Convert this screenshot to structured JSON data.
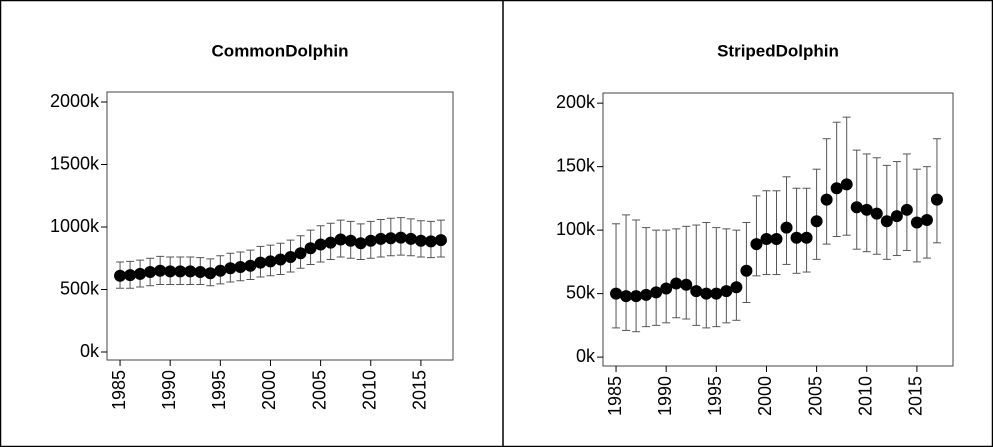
{
  "chart_data": [
    {
      "type": "scatter",
      "title": "CommonDolphin",
      "x": [
        1985,
        1986,
        1987,
        1988,
        1989,
        1990,
        1991,
        1992,
        1993,
        1994,
        1995,
        1996,
        1997,
        1998,
        1999,
        2000,
        2001,
        2002,
        2003,
        2004,
        2005,
        2006,
        2007,
        2008,
        2009,
        2010,
        2011,
        2012,
        2013,
        2014,
        2015,
        2016,
        2017
      ],
      "values": [
        610000,
        615000,
        625000,
        640000,
        650000,
        645000,
        645000,
        645000,
        640000,
        630000,
        650000,
        670000,
        680000,
        690000,
        715000,
        725000,
        740000,
        760000,
        790000,
        830000,
        860000,
        875000,
        900000,
        890000,
        870000,
        890000,
        905000,
        910000,
        915000,
        905000,
        890000,
        885000,
        895000
      ],
      "lower": [
        510000,
        510000,
        520000,
        530000,
        540000,
        540000,
        540000,
        540000,
        540000,
        530000,
        545000,
        560000,
        570000,
        580000,
        600000,
        610000,
        620000,
        640000,
        670000,
        700000,
        720000,
        740000,
        760000,
        750000,
        740000,
        750000,
        760000,
        770000,
        775000,
        770000,
        760000,
        755000,
        760000
      ],
      "upper": [
        720000,
        725000,
        735000,
        750000,
        765000,
        760000,
        760000,
        760000,
        755000,
        745000,
        770000,
        790000,
        800000,
        815000,
        845000,
        855000,
        870000,
        895000,
        930000,
        975000,
        1010000,
        1030000,
        1055000,
        1045000,
        1025000,
        1045000,
        1060000,
        1070000,
        1075000,
        1065000,
        1050000,
        1045000,
        1055000
      ],
      "color": "#000000",
      "xlim": [
        1983.7,
        2018.2
      ],
      "xticks": [
        1985,
        1990,
        1995,
        2000,
        2005,
        2010,
        2015
      ],
      "ylim": [
        -64000,
        2080000
      ],
      "yticks": [
        {
          "value": 0,
          "label": "0k"
        },
        {
          "value": 500000,
          "label": "500k"
        },
        {
          "value": 1000000,
          "label": "1000k"
        },
        {
          "value": 1500000,
          "label": "1500k"
        },
        {
          "value": 2000000,
          "label": "2000k"
        }
      ]
    },
    {
      "type": "scatter",
      "title": "StripedDolphin",
      "x": [
        1985,
        1986,
        1987,
        1988,
        1989,
        1990,
        1991,
        1992,
        1993,
        1994,
        1995,
        1996,
        1997,
        1998,
        1999,
        2000,
        2001,
        2002,
        2003,
        2004,
        2005,
        2006,
        2007,
        2008,
        2009,
        2010,
        2011,
        2012,
        2013,
        2014,
        2015,
        2016,
        2017
      ],
      "values": [
        50000,
        48000,
        48000,
        49000,
        51000,
        54000,
        58000,
        57000,
        52000,
        50000,
        50000,
        52000,
        55000,
        68000,
        89000,
        93000,
        93000,
        102000,
        94000,
        94000,
        107000,
        124000,
        133000,
        136000,
        118000,
        116000,
        113000,
        107000,
        111000,
        116000,
        106000,
        108000,
        124000
      ],
      "lower": [
        23000,
        21000,
        20000,
        24000,
        25000,
        27000,
        31000,
        30000,
        25000,
        23000,
        24000,
        27000,
        29000,
        43000,
        64000,
        65000,
        65000,
        73000,
        66000,
        67000,
        77000,
        89000,
        95000,
        96000,
        85000,
        83000,
        81000,
        77000,
        80000,
        84000,
        75000,
        78000,
        90000
      ],
      "upper": [
        105000,
        112000,
        108000,
        102000,
        100000,
        100000,
        101000,
        103000,
        104000,
        106000,
        102000,
        101000,
        100000,
        106000,
        127000,
        131000,
        131000,
        142000,
        133000,
        133000,
        148000,
        172000,
        185000,
        189000,
        163000,
        160000,
        157000,
        151000,
        154000,
        160000,
        148000,
        150000,
        172000
      ],
      "color": "#000000",
      "xlim": [
        1983.7,
        2018.6
      ],
      "xticks": [
        1985,
        1990,
        1995,
        2000,
        2005,
        2010,
        2015
      ],
      "ylim": [
        -7000,
        208000
      ],
      "yticks": [
        {
          "value": 0,
          "label": "0k"
        },
        {
          "value": 50000,
          "label": "50k"
        },
        {
          "value": 100000,
          "label": "100k"
        },
        {
          "value": 150000,
          "label": "150k"
        },
        {
          "value": 200000,
          "label": "200k"
        }
      ]
    }
  ]
}
